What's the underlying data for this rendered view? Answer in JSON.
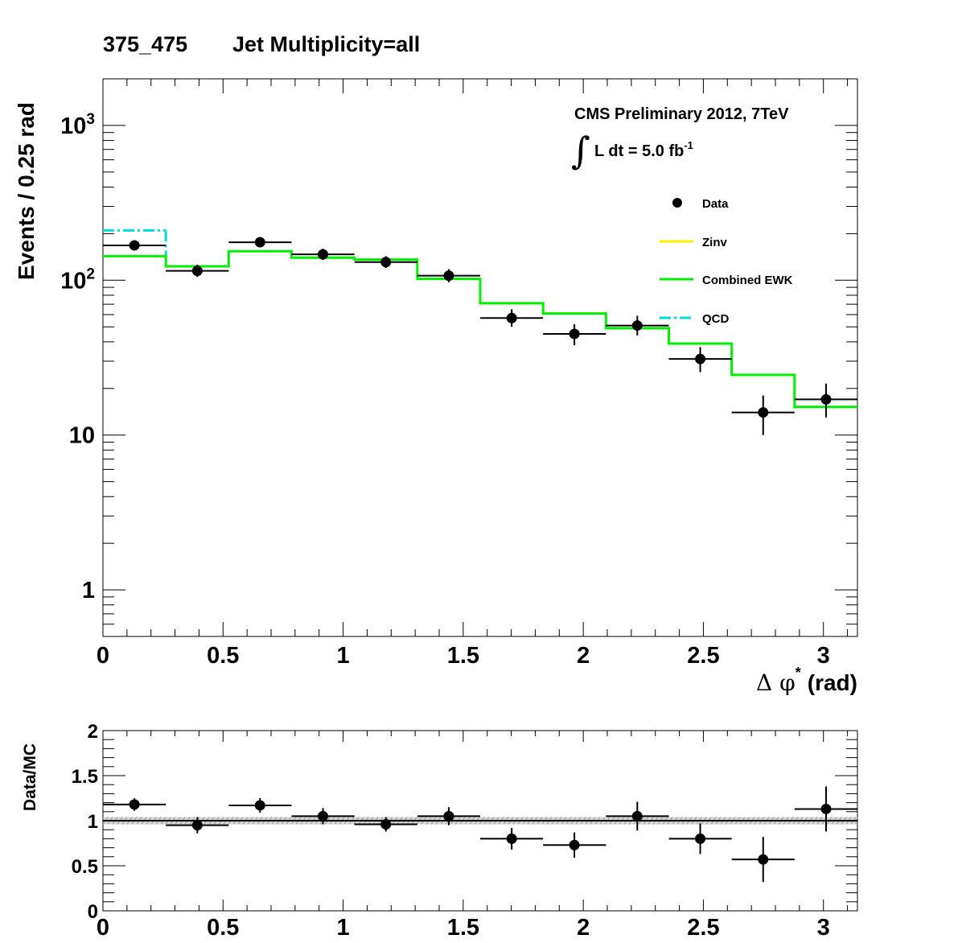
{
  "title": {
    "bin_label": "375_475",
    "selection": "Jet Multiplicity=all"
  },
  "colors": {
    "data": "#000000",
    "zinv": "#ffee00",
    "combined_ewk": "#00ee00",
    "qcd": "#00dddd",
    "ratio_band": "#b0b0b0"
  },
  "annotation": {
    "experiment": "CMS Preliminary 2012, 7TeV",
    "integral_symbol": "∫",
    "lumi_prefix": "L dt = 5.0 fb",
    "lumi_exponent": "-1"
  },
  "legend": {
    "placement": "top-right",
    "data": "Data",
    "zinv": "Zinv",
    "combined_ewk": "Combined EWK",
    "qcd": "QCD"
  },
  "chart_data": [
    {
      "type": "line",
      "subtype": "step-histogram with data points",
      "ylabel": "Events / 0.25 rad",
      "xlabel_symbol": "Δ φ",
      "xlabel_superscript": "*",
      "xlabel_unit": "(rad)",
      "xlim": [
        0,
        3.1416
      ],
      "ylim": [
        0.5,
        2000
      ],
      "yscale": "log",
      "grid": false,
      "x_ticks": [
        "0",
        "0.5",
        "1",
        "1.5",
        "2",
        "2.5",
        "3"
      ],
      "y_ticks": [
        {
          "value": 1,
          "base": "1",
          "exp": ""
        },
        {
          "value": 10,
          "base": "10",
          "exp": ""
        },
        {
          "value": 100,
          "base": "10",
          "exp": "2"
        },
        {
          "value": 1000,
          "base": "10",
          "exp": "3"
        }
      ],
      "bin_edges": [
        0,
        0.2618,
        0.5236,
        0.7854,
        1.0472,
        1.309,
        1.5708,
        1.8326,
        2.0944,
        2.3562,
        2.618,
        2.8798,
        3.1416
      ],
      "series": [
        {
          "key": "data",
          "name": "Data",
          "x": [
            0.131,
            0.393,
            0.654,
            0.916,
            1.178,
            1.44,
            1.702,
            1.963,
            2.225,
            2.487,
            2.749,
            3.011
          ],
          "values": [
            168,
            115,
            176,
            147,
            131,
            107,
            57,
            45,
            51,
            31,
            14,
            17
          ],
          "err_low": [
            12,
            10,
            13,
            12,
            11,
            10,
            7,
            7,
            7,
            5.5,
            4,
            4
          ],
          "err_high": [
            13,
            11,
            14,
            13,
            12,
            11,
            8,
            7,
            8,
            6,
            4,
            4.5
          ]
        },
        {
          "key": "qcd",
          "name": "QCD",
          "values": [
            210,
            0,
            0,
            0,
            0,
            0,
            0,
            0,
            0,
            0,
            0,
            0
          ]
        },
        {
          "key": "combined_ewk",
          "name": "Combined EWK",
          "values": [
            143,
            123,
            154,
            140,
            136,
            102,
            71,
            61,
            49,
            39,
            24.5,
            15.2
          ]
        }
      ]
    },
    {
      "type": "scatter",
      "subtype": "ratio",
      "ylabel": "Data/MC",
      "xlim": [
        0,
        3.1416
      ],
      "ylim": [
        0,
        2
      ],
      "grid": false,
      "reference_line": 1,
      "x_ticks": [
        "0",
        "0.5",
        "1",
        "1.5",
        "2",
        "2.5",
        "3"
      ],
      "y_ticks": [
        "0",
        "0.5",
        "1",
        "1.5",
        "2"
      ],
      "series": [
        {
          "key": "ratio",
          "name": "Data/MC",
          "x": [
            0.131,
            0.393,
            0.654,
            0.916,
            1.178,
            1.44,
            1.702,
            1.963,
            2.225,
            2.487,
            2.749,
            3.011
          ],
          "values": [
            1.18,
            0.95,
            1.17,
            1.05,
            0.96,
            1.05,
            0.8,
            0.73,
            1.05,
            0.8,
            0.57,
            1.13
          ],
          "err": [
            0.07,
            0.09,
            0.08,
            0.09,
            0.08,
            0.1,
            0.12,
            0.14,
            0.16,
            0.17,
            0.25,
            0.25
          ]
        }
      ],
      "band_halfwidth": 0.04
    }
  ]
}
